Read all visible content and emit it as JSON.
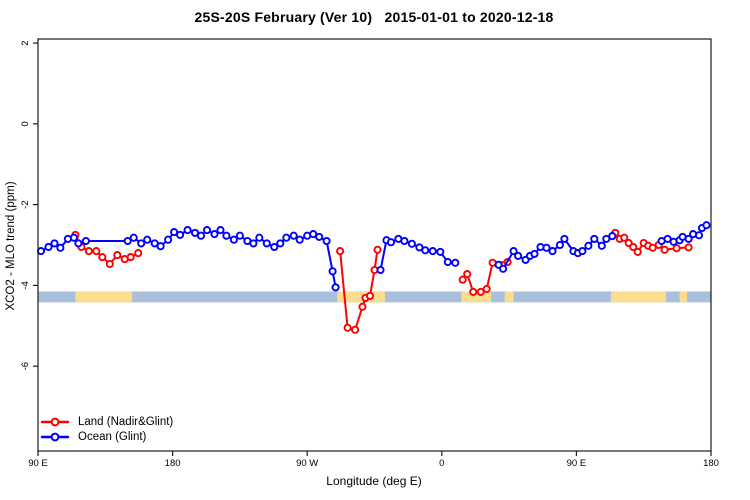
{
  "title": "25S-20S February (Ver 10)   2015-01-01 to 2020-12-18",
  "legend": {
    "items": [
      {
        "label": "Land (Nadir&Glint)",
        "color": "#ff0000"
      },
      {
        "label": "Ocean (Glint)",
        "color": "#0000ff"
      }
    ]
  },
  "chart_data": {
    "type": "line",
    "title": "25S-20S February (Ver 10)   2015-01-01 to 2020-12-18",
    "xlabel": "Longitude (deg E)",
    "ylabel": "XCO2 - MLO trend (ppm)",
    "xlim": [
      90,
      540
    ],
    "ylim": [
      -8.1,
      2.1
    ],
    "grid": false,
    "legend_position": "bottom-left-inside",
    "axis_color": "#1a1a1a",
    "marker": "open-circle",
    "xticks": [
      {
        "v": 90,
        "label": "90 E"
      },
      {
        "v": 180,
        "label": "180"
      },
      {
        "v": 270,
        "label": "90 W"
      },
      {
        "v": 360,
        "label": "0"
      },
      {
        "v": 450,
        "label": "90 E"
      },
      {
        "v": 540,
        "label": "180"
      }
    ],
    "yticks": [
      {
        "v": 2,
        "label": "2"
      },
      {
        "v": 0,
        "label": "0"
      },
      {
        "v": -2,
        "label": "-2"
      },
      {
        "v": -4,
        "label": "-4"
      },
      {
        "v": -6,
        "label": "-6"
      }
    ],
    "x_axis_note": "longitude in deg E increasing eastward from 90E, wrapping through 180, 90W and 0 back to 180",
    "series": [
      {
        "name": "Land (Nadir&Glint)",
        "color": "#ff0000",
        "segments": [
          [
            [
              115,
              -2.75
            ],
            [
              119,
              -3.05
            ],
            [
              124,
              -3.15
            ],
            [
              129,
              -3.15
            ],
            [
              133,
              -3.3
            ],
            [
              138,
              -3.47
            ],
            [
              143,
              -3.25
            ],
            [
              148,
              -3.35
            ],
            [
              152,
              -3.3
            ],
            [
              157,
              -3.2
            ]
          ],
          [
            [
              292,
              -3.15
            ],
            [
              297,
              -5.05
            ],
            [
              302,
              -5.1
            ],
            [
              307,
              -4.53
            ],
            [
              309,
              -4.31
            ],
            [
              312,
              -4.26
            ],
            [
              315,
              -3.62
            ],
            [
              317,
              -3.12
            ]
          ],
          [
            [
              374,
              -3.86
            ],
            [
              377,
              -3.72
            ],
            [
              381,
              -4.16
            ],
            [
              386,
              -4.16
            ],
            [
              390,
              -4.09
            ],
            [
              394,
              -3.44
            ],
            [
              404,
              -3.42
            ]
          ],
          [
            [
              476,
              -2.7
            ],
            [
              479,
              -2.85
            ],
            [
              482,
              -2.82
            ],
            [
              485,
              -2.95
            ],
            [
              488,
              -3.05
            ],
            [
              491,
              -3.17
            ],
            [
              495,
              -2.95
            ],
            [
              498,
              -3.02
            ],
            [
              501,
              -3.07
            ],
            [
              505,
              -3.0
            ],
            [
              509,
              -3.12
            ],
            [
              517,
              -3.08
            ],
            [
              525,
              -3.06
            ]
          ]
        ]
      },
      {
        "name": "Ocean (Glint)",
        "color": "#0000ff",
        "segments": [
          [
            [
              92,
              -3.15
            ],
            [
              97,
              -3.05
            ],
            [
              101,
              -2.96
            ],
            [
              105,
              -3.07
            ],
            [
              110,
              -2.85
            ],
            [
              114,
              -2.82
            ],
            [
              117,
              -2.96
            ],
            [
              122,
              -2.9
            ],
            [
              150,
              -2.9
            ],
            [
              154,
              -2.82
            ],
            [
              159,
              -2.96
            ],
            [
              163,
              -2.87
            ],
            [
              168,
              -2.96
            ],
            [
              172,
              -3.03
            ],
            [
              177,
              -2.87
            ],
            [
              181,
              -2.68
            ],
            [
              185,
              -2.75
            ],
            [
              190,
              -2.63
            ],
            [
              195,
              -2.7
            ],
            [
              199,
              -2.77
            ],
            [
              203,
              -2.63
            ],
            [
              208,
              -2.73
            ],
            [
              212,
              -2.63
            ],
            [
              216,
              -2.77
            ],
            [
              221,
              -2.87
            ],
            [
              225,
              -2.77
            ],
            [
              230,
              -2.9
            ],
            [
              234,
              -2.96
            ],
            [
              238,
              -2.82
            ],
            [
              243,
              -2.96
            ],
            [
              248,
              -3.05
            ],
            [
              252,
              -2.96
            ],
            [
              256,
              -2.82
            ],
            [
              261,
              -2.77
            ],
            [
              265,
              -2.87
            ],
            [
              270,
              -2.77
            ],
            [
              274,
              -2.73
            ],
            [
              278,
              -2.8
            ],
            [
              283,
              -2.9
            ],
            [
              287,
              -3.65
            ],
            [
              289,
              -4.05
            ]
          ],
          [
            [
              319,
              -3.62
            ],
            [
              323,
              -2.88
            ],
            [
              326,
              -2.93
            ],
            [
              331,
              -2.85
            ],
            [
              335,
              -2.9
            ],
            [
              340,
              -2.97
            ],
            [
              345,
              -3.06
            ],
            [
              349,
              -3.13
            ],
            [
              354,
              -3.15
            ],
            [
              359,
              -3.17
            ],
            [
              364,
              -3.42
            ],
            [
              369,
              -3.44
            ]
          ],
          [
            [
              398,
              -3.49
            ],
            [
              401,
              -3.59
            ],
            [
              408,
              -3.15
            ],
            [
              411,
              -3.27
            ],
            [
              416,
              -3.37
            ],
            [
              419,
              -3.27
            ],
            [
              422,
              -3.22
            ],
            [
              426,
              -3.05
            ],
            [
              430,
              -3.07
            ],
            [
              434,
              -3.15
            ],
            [
              439,
              -3.0
            ],
            [
              442,
              -2.85
            ],
            [
              448,
              -3.15
            ],
            [
              451,
              -3.2
            ],
            [
              454,
              -3.15
            ],
            [
              458,
              -3.02
            ],
            [
              462,
              -2.85
            ],
            [
              467,
              -3.02
            ],
            [
              470,
              -2.85
            ],
            [
              474,
              -2.78
            ]
          ],
          [
            [
              507,
              -2.9
            ],
            [
              511,
              -2.85
            ],
            [
              515,
              -2.92
            ],
            [
              519,
              -2.88
            ],
            [
              521,
              -2.8
            ],
            [
              525,
              -2.85
            ],
            [
              528,
              -2.73
            ],
            [
              532,
              -2.76
            ],
            [
              534,
              -2.58
            ],
            [
              537,
              -2.51
            ]
          ]
        ]
      }
    ],
    "surface_band": {
      "description": "land/ocean surface-type strip along longitude",
      "value_range": [
        -4.15,
        -4.42
      ],
      "ocean_color": "#a9c0dd",
      "land_color": "#fadd8e",
      "land_segments_lon": [
        [
          115,
          153
        ],
        [
          290,
          322
        ],
        [
          373,
          393
        ],
        [
          402,
          408
        ],
        [
          473,
          510
        ],
        [
          519,
          524
        ]
      ]
    }
  }
}
